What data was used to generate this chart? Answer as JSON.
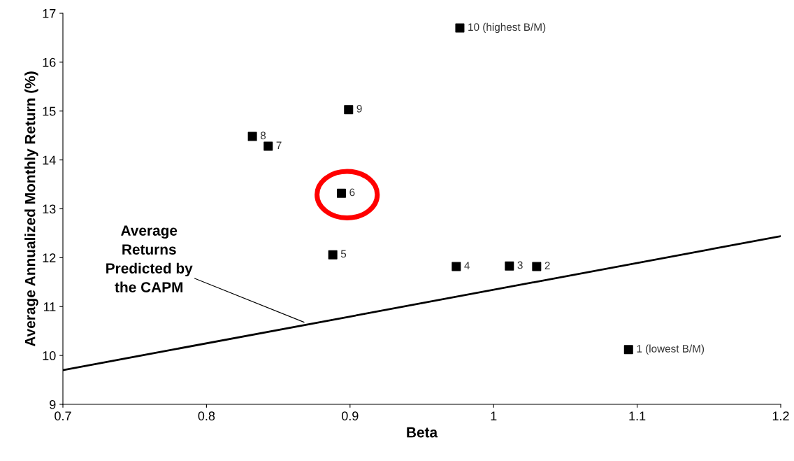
{
  "chart_data": {
    "type": "scatter",
    "xlabel": "Beta",
    "ylabel": "Average Annualized Monthly Return (%)",
    "xlim": [
      0.7,
      1.2
    ],
    "xticks": [
      0.7,
      0.8,
      0.9,
      {
        "value": 1.0,
        "label": "1"
      },
      1.1,
      1.2
    ],
    "ylim": [
      9,
      17
    ],
    "yticks": [
      9,
      10,
      11,
      12,
      13,
      14,
      15,
      16,
      17
    ],
    "grid": false,
    "legend": false,
    "marker": "square",
    "series": [
      {
        "color": "#000000",
        "x": [
          1.094,
          1.03,
          1.011,
          0.974,
          0.888,
          0.894,
          0.843,
          0.832,
          0.899,
          0.9765
        ],
        "values": [
          10.12,
          11.82,
          11.83,
          11.82,
          12.06,
          13.32,
          14.28,
          14.48,
          15.03,
          16.7
        ]
      },
      {
        "type": "line",
        "color": "#000000",
        "marker": "none",
        "line_style": "solid",
        "x": [
          0.7,
          1.2
        ],
        "values": [
          9.7,
          12.44
        ]
      }
    ],
    "annotations": [
      {
        "text": "1 (lowest B/M)",
        "x": 1.094,
        "y": 10.12
      },
      {
        "text": "2",
        "x": 1.03,
        "y": 11.82
      },
      {
        "text": "3",
        "x": 1.011,
        "y": 11.83
      },
      {
        "text": "4",
        "x": 0.974,
        "y": 11.82
      },
      {
        "text": "5",
        "x": 0.888,
        "y": 12.06
      },
      {
        "text": "6",
        "x": 0.894,
        "y": 13.32
      },
      {
        "text": "7",
        "x": 0.843,
        "y": 14.28
      },
      {
        "text": "8",
        "x": 0.832,
        "y": 14.48
      },
      {
        "text": "9",
        "x": 0.899,
        "y": 15.03
      },
      {
        "text": "10 (highest B/M)",
        "x": 0.9765,
        "y": 16.7
      },
      {
        "text": "Average\nReturns\nPredicted by\nthe CAPM",
        "x": 0.868,
        "y": 10.68
      }
    ]
  }
}
